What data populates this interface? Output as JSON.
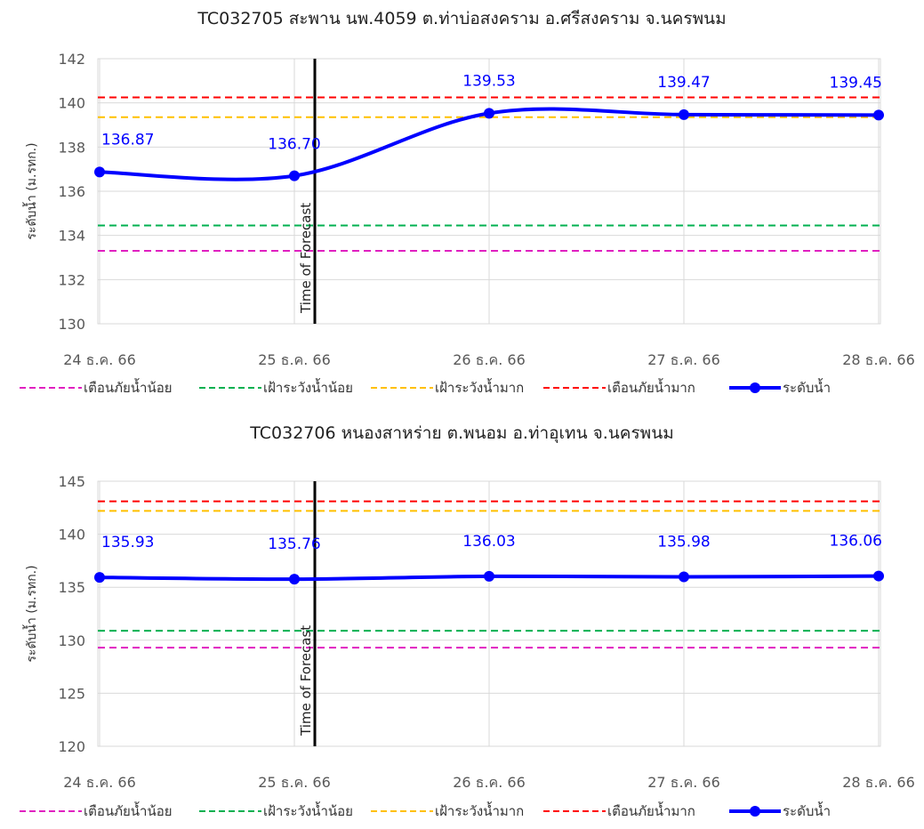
{
  "forecast_label": "Time of Forecast",
  "legend": [
    {
      "label": "เตือนภัยน้ำน้อย",
      "color": "#e020c0",
      "style": "dashed"
    },
    {
      "label": "เฝ้าระวังน้ำน้อย",
      "color": "#00b050",
      "style": "dashed"
    },
    {
      "label": "เฝ้าระวังน้ำมาก",
      "color": "#ffc000",
      "style": "dashed"
    },
    {
      "label": "เตือนภัยน้ำมาก",
      "color": "#ff0000",
      "style": "dashed"
    },
    {
      "label": "ระดับน้ำ",
      "color": "#0000ff",
      "style": "line-marker"
    }
  ],
  "chart_data": [
    {
      "type": "line",
      "title": "TC032705 สะพาน นพ.4059 ต.ท่าบ่อสงคราม อ.ศรีสงคราม จ.นครพนม",
      "xlabel": "",
      "ylabel": "ระดับน้ำ (ม.รทก.)",
      "categories": [
        "24 ธ.ค. 66",
        "25 ธ.ค. 66",
        "26 ธ.ค. 66",
        "27 ธ.ค. 66",
        "28 ธ.ค. 66"
      ],
      "ylim": [
        130,
        142
      ],
      "yticks": [
        130,
        132,
        134,
        136,
        138,
        140,
        142
      ],
      "forecast_index": 1,
      "series": [
        {
          "name": "ระดับน้ำ",
          "values": [
            136.87,
            136.7,
            139.53,
            139.47,
            139.45
          ],
          "labels": [
            "136.87",
            "136.70",
            "139.53",
            "139.47",
            "139.45"
          ]
        }
      ],
      "thresholds": [
        {
          "name": "เตือนภัยน้ำน้อย",
          "value": 133.3
        },
        {
          "name": "เฝ้าระวังน้ำน้อย",
          "value": 134.45
        },
        {
          "name": "เฝ้าระวังน้ำมาก",
          "value": 139.35
        },
        {
          "name": "เตือนภัยน้ำมาก",
          "value": 140.25
        }
      ],
      "grid": true,
      "legend_position": "bottom"
    },
    {
      "type": "line",
      "title": "TC032706 หนองสาหร่าย ต.พนอม อ.ท่าอุเทน จ.นครพนม",
      "xlabel": "",
      "ylabel": "ระดับน้ำ (ม.รทก.)",
      "categories": [
        "24 ธ.ค. 66",
        "25 ธ.ค. 66",
        "26 ธ.ค. 66",
        "27 ธ.ค. 66",
        "28 ธ.ค. 66"
      ],
      "ylim": [
        120,
        145
      ],
      "yticks": [
        120,
        125,
        130,
        135,
        140,
        145
      ],
      "forecast_index": 1,
      "series": [
        {
          "name": "ระดับน้ำ",
          "values": [
            135.93,
            135.76,
            136.03,
            135.98,
            136.06
          ],
          "labels": [
            "135.93",
            "135.76",
            "136.03",
            "135.98",
            "136.06"
          ]
        }
      ],
      "thresholds": [
        {
          "name": "เตือนภัยน้ำน้อย",
          "value": 129.3
        },
        {
          "name": "เฝ้าระวังน้ำน้อย",
          "value": 130.9
        },
        {
          "name": "เฝ้าระวังน้ำมาก",
          "value": 142.2
        },
        {
          "name": "เตือนภัยน้ำมาก",
          "value": 143.1
        }
      ],
      "grid": true,
      "legend_position": "bottom"
    }
  ]
}
